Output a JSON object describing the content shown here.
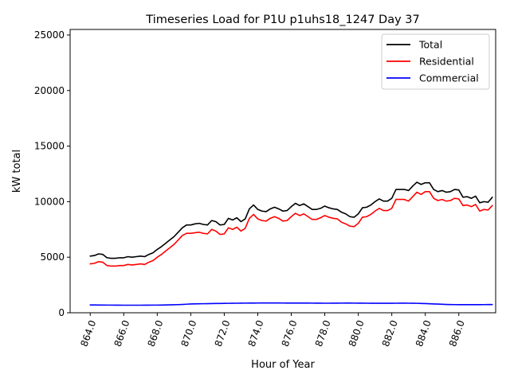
{
  "chart_data": {
    "type": "line",
    "title": "Timeseries Load for P1U p1uhs18_1247  Day 37",
    "xlabel": "Hour of Year",
    "ylabel": "kW total",
    "xlim": [
      862.8,
      888.2
    ],
    "ylim": [
      0,
      25500
    ],
    "x_ticks": [
      864,
      866,
      868,
      870,
      872,
      874,
      876,
      878,
      880,
      882,
      884,
      886
    ],
    "x_tick_labels": [
      "864.0",
      "866.0",
      "868.0",
      "870.0",
      "872.0",
      "874.0",
      "876.0",
      "878.0",
      "880.0",
      "882.0",
      "884.0",
      "886.0"
    ],
    "y_ticks": [
      0,
      5000,
      10000,
      15000,
      20000,
      25000
    ],
    "y_tick_labels": [
      "0",
      "5000",
      "10000",
      "15000",
      "20000",
      "25000"
    ],
    "grid": false,
    "legend_position": "top-right",
    "x_start": 864,
    "x_step": 0.25,
    "series": [
      {
        "name": "Total",
        "color": "#000000",
        "values": [
          5100,
          5150,
          5300,
          5250,
          4950,
          4900,
          4900,
          4950,
          4950,
          5050,
          5000,
          5050,
          5100,
          5050,
          5250,
          5400,
          5700,
          5950,
          6250,
          6550,
          6850,
          7250,
          7650,
          7900,
          7900,
          8000,
          8050,
          7950,
          7900,
          8300,
          8200,
          7900,
          7950,
          8500,
          8350,
          8550,
          8200,
          8450,
          9350,
          9700,
          9300,
          9150,
          9100,
          9350,
          9500,
          9350,
          9150,
          9200,
          9550,
          9850,
          9650,
          9800,
          9550,
          9300,
          9300,
          9400,
          9600,
          9450,
          9350,
          9300,
          9050,
          8900,
          8650,
          8600,
          8900,
          9450,
          9500,
          9700,
          10000,
          10250,
          10050,
          10050,
          10300,
          11100,
          11100,
          11100,
          11000,
          11400,
          11750,
          11550,
          11700,
          11700,
          11100,
          10900,
          11000,
          10850,
          10900,
          11100,
          11050,
          10400,
          10450,
          10300,
          10500,
          9900,
          10000,
          9950,
          10400
        ]
      },
      {
        "name": "Residential",
        "color": "#ff0000",
        "values": [
          4400,
          4450,
          4600,
          4550,
          4250,
          4200,
          4200,
          4250,
          4250,
          4350,
          4300,
          4350,
          4400,
          4350,
          4550,
          4700,
          5000,
          5250,
          5550,
          5850,
          6150,
          6550,
          6950,
          7150,
          7150,
          7200,
          7250,
          7150,
          7100,
          7500,
          7350,
          7050,
          7100,
          7650,
          7500,
          7700,
          7350,
          7600,
          8500,
          8850,
          8450,
          8300,
          8250,
          8500,
          8650,
          8500,
          8250,
          8300,
          8650,
          8950,
          8750,
          8900,
          8650,
          8400,
          8400,
          8550,
          8750,
          8600,
          8500,
          8450,
          8150,
          8000,
          7800,
          7750,
          8050,
          8600,
          8650,
          8850,
          9150,
          9400,
          9200,
          9200,
          9400,
          10200,
          10200,
          10200,
          10050,
          10450,
          10850,
          10650,
          10900,
          10900,
          10300,
          10100,
          10200,
          10050,
          10100,
          10300,
          10250,
          9650,
          9700,
          9550,
          9750,
          9150,
          9300,
          9250,
          9650
        ]
      },
      {
        "name": "Commercial",
        "color": "#0000ff",
        "values": [
          700,
          700,
          695,
          695,
          690,
          690,
          685,
          685,
          680,
          680,
          680,
          680,
          680,
          685,
          685,
          690,
          690,
          695,
          700,
          710,
          720,
          735,
          750,
          770,
          790,
          800,
          810,
          815,
          820,
          830,
          835,
          840,
          845,
          850,
          855,
          860,
          865,
          868,
          872,
          875,
          878,
          880,
          880,
          880,
          880,
          880,
          878,
          876,
          875,
          874,
          873,
          872,
          870,
          868,
          865,
          862,
          860,
          860,
          862,
          865,
          868,
          870,
          870,
          868,
          865,
          862,
          860,
          858,
          856,
          855,
          855,
          856,
          858,
          860,
          862,
          862,
          860,
          858,
          850,
          840,
          825,
          810,
          795,
          780,
          765,
          750,
          740,
          735,
          732,
          730,
          730,
          730,
          730,
          732,
          735,
          738,
          740
        ]
      }
    ]
  }
}
